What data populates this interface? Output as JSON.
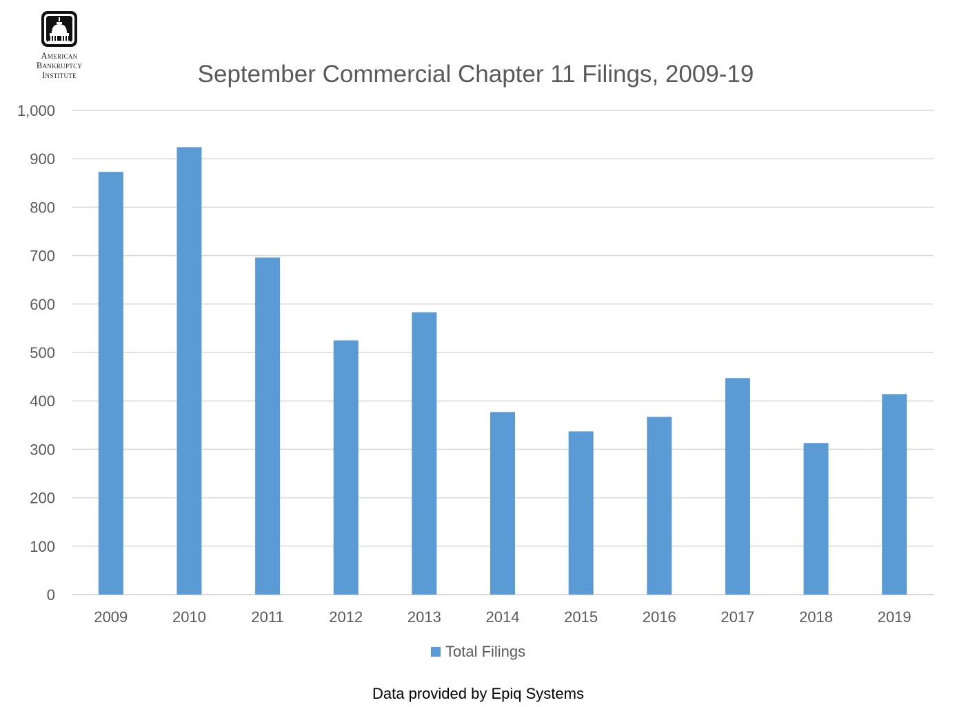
{
  "logo": {
    "line1": "American",
    "line2": "Bankruptcy",
    "line3": "Institute"
  },
  "source_note": "Data provided by Epiq Systems",
  "colors": {
    "bar": "#5B9BD5",
    "grid": "#D9D9D9",
    "text": "#595959"
  },
  "chart_data": {
    "type": "bar",
    "title": "September Commercial Chapter 11 Filings, 2009-19",
    "xlabel": "",
    "ylabel": "",
    "categories": [
      "2009",
      "2010",
      "2011",
      "2012",
      "2013",
      "2014",
      "2015",
      "2016",
      "2017",
      "2018",
      "2019"
    ],
    "series": [
      {
        "name": "Total Filings",
        "values": [
          873,
          924,
          696,
          525,
          583,
          377,
          337,
          367,
          447,
          313,
          414
        ]
      }
    ],
    "ylim": [
      0,
      1000
    ],
    "yticks": [
      0,
      100,
      200,
      300,
      400,
      500,
      600,
      700,
      800,
      900,
      1000
    ],
    "ytick_labels": [
      "0",
      "100",
      "200",
      "300",
      "400",
      "500",
      "600",
      "700",
      "800",
      "900",
      "1,000"
    ],
    "grid": true,
    "legend": "bottom"
  }
}
